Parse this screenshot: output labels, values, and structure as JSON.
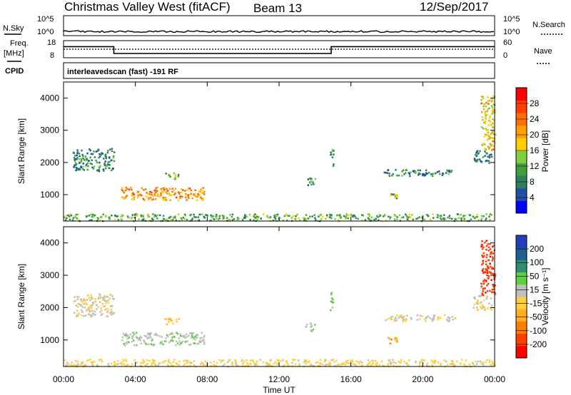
{
  "header": {
    "station": "Christmas Valley West (fitACF)",
    "beam": "Beam 13",
    "date": "12/Sep/2017"
  },
  "strip_labels": {
    "nsky": "N.Sky",
    "nsky_top": "10^5",
    "nsky_bottom": "10^0",
    "nsearch": "N.Search",
    "nsearch_top": "10^5",
    "nsearch_bottom": "10^0",
    "freq_label_1": "Freq.",
    "freq_label_2": "[MHz]",
    "freq_top": "18",
    "freq_bottom": "8",
    "nave": "Nave",
    "nave_top": "60",
    "nave_bottom": "0",
    "cpid": "CPID",
    "cpid_text": "interleavedscan (fast) -191 RF"
  },
  "axes": {
    "ylabel": "Slant Range [km]",
    "xlabel": "Time UT",
    "xticks": [
      "00:00",
      "04:00",
      "08:00",
      "12:00",
      "16:00",
      "20:00",
      "00:00"
    ],
    "yticks": [
      "1000",
      "2000",
      "3000",
      "4000"
    ]
  },
  "colorbars": {
    "power": {
      "label": "Power [dB]",
      "ticks": [
        "4",
        "8",
        "12",
        "16",
        "20",
        "24",
        "28"
      ],
      "colors": [
        "#0000ff",
        "#1f4fa6",
        "#2f7f5f",
        "#3f9f3f",
        "#7fcf3f",
        "#ffcf00",
        "#ff9f00",
        "#ff6f00",
        "#ff3f00",
        "#ff0000"
      ]
    },
    "velocity": {
      "label": "Velocity [m s⁻¹]",
      "ticks": [
        "200",
        "100",
        "50",
        "15",
        "-15",
        "-50",
        "-100",
        "-200"
      ],
      "colors": [
        "#1f3fbf",
        "#1f5f8f",
        "#2f8f6f",
        "#5fcf3f",
        "#bfbfbf",
        "#ffcf3f",
        "#ffaf1f",
        "#ff7f00",
        "#ff3f00",
        "#ff0000"
      ]
    }
  },
  "chart_data": {
    "type": "heatmap",
    "title": "Christmas Valley West (fitACF) Beam 13 12/Sep/2017",
    "xlabel": "Time UT",
    "ylabel": "Slant Range [km]",
    "xlim_hours": [
      0,
      24
    ],
    "ylim_km": [
      180,
      4500
    ],
    "frequency_mhz_steps": [
      {
        "from": 0,
        "to": 2.8,
        "value": 14.5
      },
      {
        "from": 2.8,
        "to": 14.9,
        "value": 10.5
      },
      {
        "from": 14.9,
        "to": 24,
        "value": 14.5
      }
    ],
    "echo_regions": [
      {
        "name": "near-range",
        "t0": 0.0,
        "t1": 24.0,
        "r0": 200,
        "r1": 420,
        "power": 12,
        "velocity": -20
      },
      {
        "name": "patch-a",
        "t0": 0.5,
        "t1": 2.8,
        "r0": 1750,
        "r1": 2450,
        "power": 9,
        "velocity": 5
      },
      {
        "name": "patch-b",
        "t0": 3.2,
        "t1": 7.8,
        "r0": 850,
        "r1": 1250,
        "power": 22,
        "velocity": 40
      },
      {
        "name": "patch-c",
        "t0": 5.6,
        "t1": 6.4,
        "r0": 1500,
        "r1": 1700,
        "power": 14,
        "velocity": -60
      },
      {
        "name": "patch-d",
        "t0": 13.4,
        "t1": 14.0,
        "r0": 1300,
        "r1": 1550,
        "power": 9,
        "velocity": 50
      },
      {
        "name": "patch-e",
        "t0": 14.8,
        "t1": 15.0,
        "r0": 1900,
        "r1": 2500,
        "power": 10,
        "velocity": 60
      },
      {
        "name": "patch-f",
        "t0": 17.8,
        "t1": 21.8,
        "r0": 1600,
        "r1": 1800,
        "power": 9,
        "velocity": 5
      },
      {
        "name": "patch-g",
        "t0": 17.9,
        "t1": 18.6,
        "r0": 900,
        "r1": 1100,
        "power": 14,
        "velocity": -80
      },
      {
        "name": "patch-h",
        "t0": 22.8,
        "t1": 23.8,
        "r0": 1950,
        "r1": 2400,
        "power": 8,
        "velocity": 5
      },
      {
        "name": "patch-i",
        "t0": 23.2,
        "t1": 24.0,
        "r0": 2400,
        "r1": 4100,
        "power": 18,
        "velocity": -180
      }
    ]
  }
}
